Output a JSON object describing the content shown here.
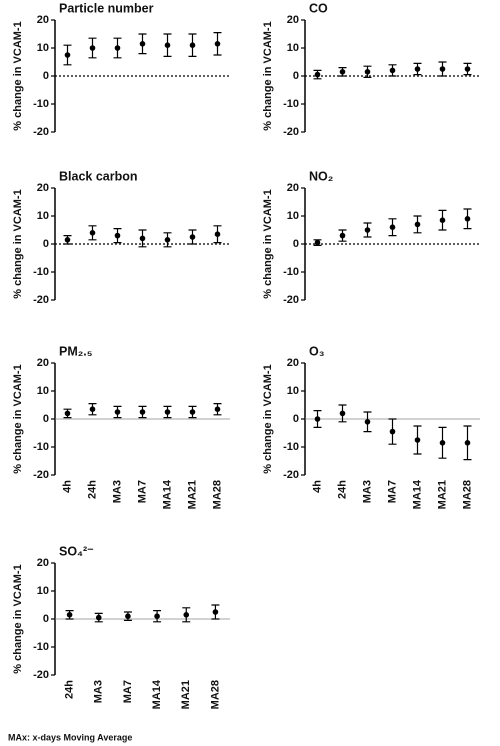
{
  "chart_data": [
    {
      "type": "errorbar",
      "title": "Particle number",
      "ylabel": "% change in VCAM-1",
      "categories": [
        null,
        null,
        null,
        null,
        null,
        null,
        null
      ],
      "values": [
        7.5,
        10,
        10,
        11.5,
        11,
        11,
        11.5
      ],
      "errors": [
        3.5,
        3.5,
        3.5,
        3.5,
        4,
        4,
        4
      ],
      "ylim": [
        -20,
        20
      ],
      "yticks": [
        -20,
        -10,
        0,
        10,
        20
      ],
      "zero_line": "dotted",
      "color": "#000000"
    },
    {
      "type": "errorbar",
      "title": "CO",
      "ylabel": "% change in VCAM-1",
      "categories": [
        null,
        null,
        null,
        null,
        null,
        null,
        null
      ],
      "values": [
        0.5,
        1.5,
        1.5,
        2,
        2.5,
        2.5,
        2.5
      ],
      "errors": [
        1.5,
        1.5,
        2,
        2,
        2,
        2.5,
        2
      ],
      "ylim": [
        -20,
        20
      ],
      "yticks": [
        -20,
        -10,
        0,
        10,
        20
      ],
      "zero_line": "dotted",
      "color": "#000000"
    },
    {
      "type": "errorbar",
      "title": "Black carbon",
      "ylabel": "% change in VCAM-1",
      "categories": [
        null,
        null,
        null,
        null,
        null,
        null,
        null
      ],
      "values": [
        1.5,
        4,
        3,
        2,
        1.5,
        2.5,
        3.5
      ],
      "errors": [
        1.5,
        2.5,
        2.5,
        3,
        2.5,
        2.5,
        3
      ],
      "ylim": [
        -20,
        20
      ],
      "yticks": [
        -20,
        -10,
        0,
        10,
        20
      ],
      "zero_line": "dotted",
      "color": "#000000"
    },
    {
      "type": "errorbar",
      "title": "NO₂",
      "ylabel": "% change in VCAM-1",
      "categories": [
        null,
        null,
        null,
        null,
        null,
        null,
        null
      ],
      "values": [
        0.5,
        3,
        5,
        6,
        7,
        8.5,
        9
      ],
      "errors": [
        1,
        2,
        2.5,
        3,
        3,
        3.5,
        3.5
      ],
      "ylim": [
        -20,
        20
      ],
      "yticks": [
        -20,
        -10,
        0,
        10,
        20
      ],
      "zero_line": "dotted",
      "color": "#000000"
    },
    {
      "type": "errorbar",
      "title": "PM₂.₅",
      "ylabel": "% change in VCAM-1",
      "categories": [
        "4h",
        "24h",
        "MA3",
        "MA7",
        "MA14",
        "MA21",
        "MA28"
      ],
      "values": [
        2,
        3.5,
        2.5,
        2.5,
        2.5,
        2.5,
        3.5
      ],
      "errors": [
        1.5,
        2,
        2,
        2,
        2,
        2,
        2
      ],
      "ylim": [
        -20,
        20
      ],
      "yticks": [
        -20,
        -10,
        0,
        10,
        20
      ],
      "zero_line": "solid",
      "color": "#000000"
    },
    {
      "type": "errorbar",
      "title": "O₃",
      "ylabel": "% change in VCAM-1",
      "categories": [
        "4h",
        "24h",
        "MA3",
        "MA7",
        "MA14",
        "MA21",
        "MA28"
      ],
      "values": [
        0,
        2,
        -1,
        -4.5,
        -7.5,
        -8.5,
        -8.5
      ],
      "errors": [
        3,
        3,
        3.5,
        4.5,
        5,
        5.5,
        6
      ],
      "ylim": [
        -20,
        20
      ],
      "yticks": [
        -20,
        -10,
        0,
        10,
        20
      ],
      "zero_line": "solid",
      "color": "#000000"
    },
    {
      "type": "errorbar",
      "title": "SO₄²⁻",
      "ylabel": "% change in VCAM-1",
      "categories": [
        "24h",
        "MA3",
        "MA7",
        "MA14",
        "MA21",
        "MA28"
      ],
      "values": [
        1.5,
        0.5,
        1,
        1,
        1.5,
        2.5
      ],
      "errors": [
        1.5,
        1.5,
        1.5,
        2,
        2.5,
        2.5
      ],
      "ylim": [
        -20,
        20
      ],
      "yticks": [
        -20,
        -10,
        0,
        10,
        20
      ],
      "zero_line": "solid",
      "color": "#000000"
    }
  ],
  "footnote": "MAx: x-days Moving Average"
}
